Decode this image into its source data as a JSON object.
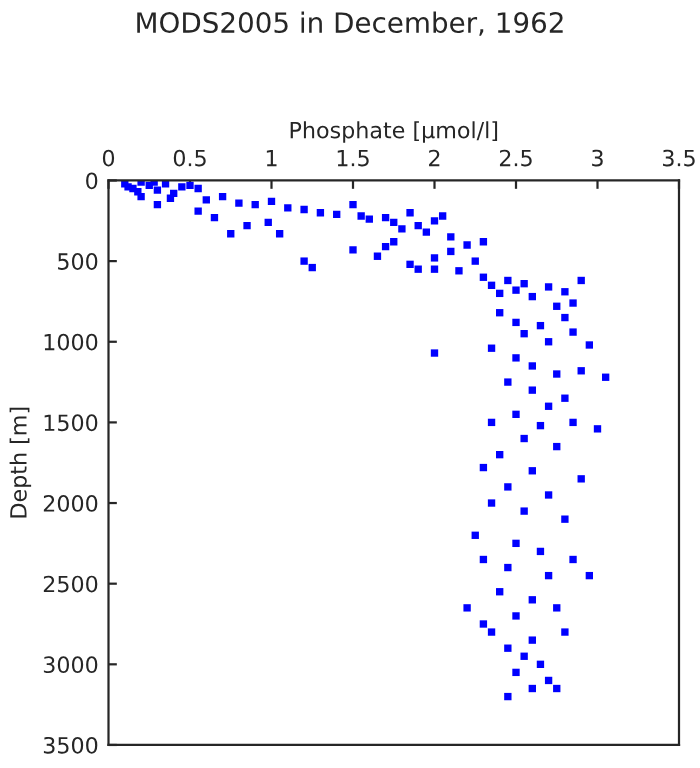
{
  "chart_data": {
    "type": "scatter",
    "title": "MODS2005 in December, 1962",
    "xlabel": "Phosphate [µmol/l]",
    "ylabel": "Depth [m]",
    "xlim": [
      0,
      3.5
    ],
    "xticks": [
      0,
      0.5,
      1,
      1.5,
      2,
      2.5,
      3,
      3.5
    ],
    "ylim": [
      3500,
      0
    ],
    "yticks": [
      0,
      500,
      1000,
      1500,
      2000,
      2500,
      3000,
      3500
    ],
    "grid": false,
    "marker": "square",
    "series": [
      {
        "color": "#0000ff",
        "x": [
          0.1,
          0.15,
          0.2,
          0.25,
          0.3,
          0.35,
          0.4,
          0.45,
          0.5,
          0.55,
          0.2,
          0.3,
          0.12,
          0.18,
          0.28,
          0.38,
          0.6,
          0.7,
          0.8,
          0.9,
          1.0,
          0.65,
          0.55,
          0.85,
          0.75,
          0.98,
          1.1,
          1.2,
          1.3,
          1.4,
          1.5,
          1.55,
          1.6,
          1.7,
          1.75,
          1.8,
          1.85,
          1.9,
          1.95,
          2.0,
          2.05,
          2.1,
          1.2,
          1.25,
          1.5,
          1.65,
          1.7,
          1.85,
          1.9,
          2.0,
          2.1,
          2.2,
          2.25,
          2.3,
          2.15,
          2.3,
          2.35,
          2.4,
          2.45,
          2.5,
          2.55,
          2.6,
          2.7,
          2.75,
          2.8,
          2.85,
          2.9,
          2.4,
          2.5,
          2.55,
          2.65,
          2.7,
          2.8,
          2.85,
          2.95,
          2.0,
          2.35,
          2.5,
          2.6,
          2.75,
          2.9,
          3.05,
          2.45,
          2.6,
          2.8,
          2.7,
          2.5,
          2.35,
          2.65,
          2.85,
          3.0,
          2.55,
          2.75,
          2.4,
          2.3,
          2.6,
          2.9,
          2.45,
          2.7,
          2.35,
          2.55,
          2.8,
          2.25,
          2.5,
          2.65,
          2.3,
          2.85,
          2.45,
          2.7,
          2.95,
          2.4,
          2.6,
          2.2,
          2.75,
          2.5,
          2.3,
          2.35,
          2.6,
          2.8,
          2.45,
          2.55,
          2.65,
          2.5,
          2.7,
          2.6,
          2.45,
          2.75,
          2.0,
          1.75,
          1.05
        ],
        "values": [
          20,
          50,
          10,
          30,
          60,
          20,
          80,
          40,
          30,
          50,
          100,
          150,
          40,
          70,
          10,
          110,
          120,
          100,
          140,
          150,
          130,
          230,
          190,
          280,
          330,
          260,
          170,
          180,
          200,
          210,
          150,
          220,
          240,
          230,
          260,
          300,
          200,
          280,
          320,
          250,
          220,
          350,
          500,
          540,
          430,
          470,
          410,
          520,
          550,
          480,
          440,
          400,
          500,
          380,
          560,
          600,
          650,
          700,
          620,
          680,
          640,
          720,
          660,
          780,
          690,
          760,
          620,
          820,
          880,
          950,
          900,
          1000,
          850,
          940,
          1020,
          1070,
          1040,
          1100,
          1150,
          1200,
          1180,
          1220,
          1250,
          1300,
          1350,
          1400,
          1450,
          1500,
          1520,
          1500,
          1540,
          1600,
          1650,
          1700,
          1780,
          1800,
          1850,
          1900,
          1950,
          2000,
          2050,
          2100,
          2200,
          2250,
          2300,
          2350,
          2350,
          2400,
          2450,
          2450,
          2550,
          2600,
          2650,
          2650,
          2700,
          2750,
          2800,
          2850,
          2800,
          2900,
          2950,
          3000,
          3050,
          3100,
          3150,
          3200,
          3150,
          550,
          380,
          330
        ]
      }
    ]
  }
}
